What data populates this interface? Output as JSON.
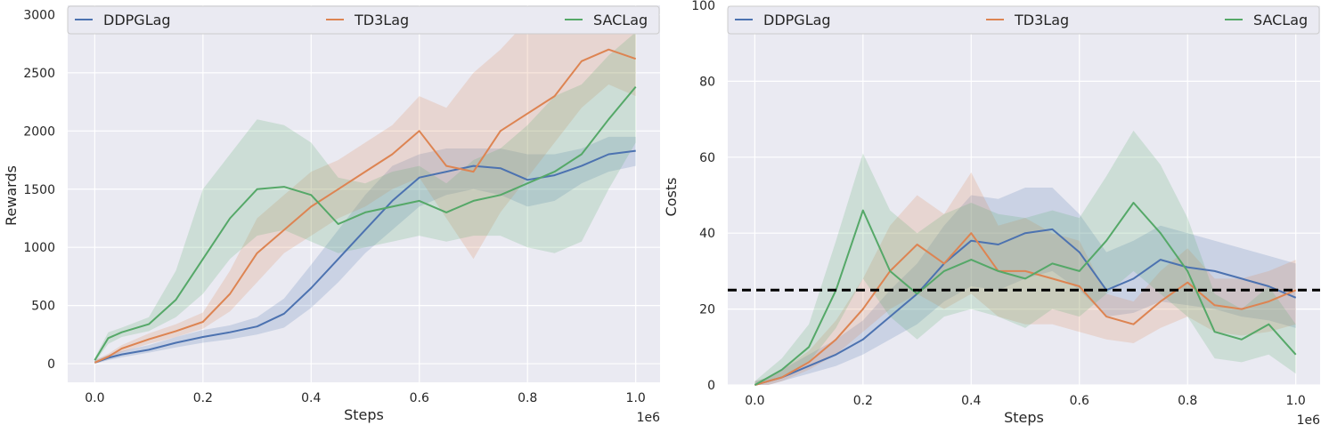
{
  "chart_data": [
    {
      "type": "line",
      "xlabel": "Steps",
      "ylabel": "Rewards",
      "x_offset_text": "1e6",
      "xlim": [
        -0.05,
        1.045
      ],
      "ylim": [
        -160,
        3080
      ],
      "xticks": [
        0.0,
        0.2,
        0.4,
        0.6,
        0.8,
        1.0
      ],
      "xtick_labels": [
        "0.0",
        "0.2",
        "0.4",
        "0.6",
        "0.8",
        "1.0"
      ],
      "yticks": [
        0,
        500,
        1000,
        1500,
        2000,
        2500,
        3000
      ],
      "ytick_labels": [
        "0",
        "500",
        "1000",
        "1500",
        "2000",
        "2500",
        "3000"
      ],
      "grid": true,
      "legend_position": "top",
      "x": [
        0.0,
        0.025,
        0.05,
        0.1,
        0.15,
        0.2,
        0.25,
        0.3,
        0.35,
        0.4,
        0.45,
        0.5,
        0.55,
        0.6,
        0.65,
        0.7,
        0.75,
        0.8,
        0.85,
        0.9,
        0.95,
        1.0
      ],
      "series": [
        {
          "name": "DDPGLag",
          "color": "#4c72b0",
          "values": [
            10,
            50,
            80,
            120,
            180,
            230,
            270,
            320,
            430,
            650,
            900,
            1150,
            1400,
            1600,
            1650,
            1700,
            1680,
            1580,
            1620,
            1700,
            1800,
            1830
          ],
          "lower": [
            0,
            30,
            55,
            95,
            140,
            180,
            210,
            250,
            310,
            480,
            700,
            950,
            1150,
            1350,
            1450,
            1500,
            1450,
            1350,
            1400,
            1550,
            1650,
            1700
          ],
          "upper": [
            30,
            75,
            110,
            160,
            230,
            290,
            330,
            400,
            560,
            850,
            1150,
            1450,
            1700,
            1800,
            1850,
            1850,
            1850,
            1800,
            1800,
            1850,
            1950,
            1950
          ]
        },
        {
          "name": "TD3Lag",
          "color": "#dd8452",
          "values": [
            10,
            60,
            130,
            210,
            280,
            360,
            600,
            950,
            1150,
            1350,
            1500,
            1650,
            1800,
            2000,
            1700,
            1650,
            2000,
            2150,
            2300,
            2600,
            2700,
            2620
          ],
          "lower": [
            0,
            40,
            100,
            170,
            230,
            300,
            450,
            700,
            950,
            1100,
            1250,
            1350,
            1500,
            1600,
            1250,
            900,
            1300,
            1600,
            1900,
            2200,
            2400,
            2300
          ],
          "upper": [
            30,
            85,
            160,
            260,
            340,
            440,
            800,
            1250,
            1450,
            1650,
            1750,
            1900,
            2050,
            2300,
            2200,
            2500,
            2700,
            2950,
            3050,
            3050,
            3050,
            3050
          ]
        },
        {
          "name": "SACLag",
          "color": "#55a868",
          "values": [
            30,
            220,
            270,
            340,
            550,
            900,
            1250,
            1500,
            1520,
            1450,
            1200,
            1300,
            1350,
            1400,
            1300,
            1400,
            1450,
            1550,
            1650,
            1800,
            2100,
            2380
          ],
          "lower": [
            10,
            170,
            230,
            280,
            400,
            600,
            900,
            1100,
            1150,
            1050,
            950,
            1000,
            1050,
            1100,
            1050,
            1100,
            1100,
            1000,
            950,
            1050,
            1500,
            1900
          ],
          "upper": [
            50,
            270,
            310,
            400,
            800,
            1500,
            1800,
            2100,
            2050,
            1900,
            1600,
            1550,
            1650,
            1700,
            1550,
            1750,
            1850,
            2050,
            2300,
            2400,
            2650,
            2850
          ]
        }
      ]
    },
    {
      "type": "line",
      "xlabel": "Steps",
      "ylabel": "Costs",
      "x_offset_text": "1e6",
      "xlim": [
        -0.05,
        1.045
      ],
      "ylim": [
        0,
        100
      ],
      "xticks": [
        0.0,
        0.2,
        0.4,
        0.6,
        0.8,
        1.0
      ],
      "xtick_labels": [
        "0.0",
        "0.2",
        "0.4",
        "0.6",
        "0.8",
        "1.0"
      ],
      "yticks": [
        0,
        20,
        40,
        60,
        80,
        100
      ],
      "ytick_labels": [
        "0",
        "20",
        "40",
        "60",
        "80",
        "100"
      ],
      "grid": true,
      "legend_position": "top",
      "threshold": {
        "y": 25,
        "color": "#000000",
        "style": "dashed"
      },
      "x": [
        0.0,
        0.025,
        0.05,
        0.1,
        0.15,
        0.2,
        0.25,
        0.3,
        0.35,
        0.4,
        0.45,
        0.5,
        0.55,
        0.6,
        0.65,
        0.7,
        0.75,
        0.8,
        0.85,
        0.9,
        0.95,
        1.0
      ],
      "series": [
        {
          "name": "DDPGLag",
          "color": "#4c72b0",
          "values": [
            0,
            1,
            2,
            5,
            8,
            12,
            18,
            24,
            32,
            38,
            37,
            40,
            41,
            35,
            25,
            28,
            33,
            31,
            30,
            28,
            26,
            23
          ],
          "lower": [
            0,
            0,
            1,
            3,
            5,
            8,
            12,
            16,
            22,
            26,
            25,
            28,
            30,
            25,
            18,
            19,
            22,
            21,
            20,
            18,
            17,
            15
          ],
          "upper": [
            1,
            2,
            4,
            8,
            12,
            17,
            25,
            32,
            42,
            50,
            49,
            52,
            52,
            45,
            35,
            38,
            42,
            40,
            38,
            36,
            34,
            32
          ]
        },
        {
          "name": "TD3Lag",
          "color": "#dd8452",
          "values": [
            0,
            1,
            2,
            6,
            12,
            20,
            30,
            37,
            32,
            40,
            30,
            30,
            28,
            26,
            18,
            16,
            22,
            27,
            21,
            20,
            22,
            25
          ],
          "lower": [
            0,
            0,
            1,
            4,
            8,
            14,
            20,
            24,
            20,
            24,
            18,
            16,
            16,
            14,
            12,
            11,
            15,
            18,
            14,
            13,
            14,
            16
          ],
          "upper": [
            1,
            2,
            4,
            9,
            17,
            28,
            42,
            50,
            45,
            56,
            42,
            44,
            40,
            38,
            24,
            22,
            30,
            36,
            28,
            28,
            30,
            33
          ]
        },
        {
          "name": "SACLag",
          "color": "#55a868",
          "values": [
            0,
            2,
            4,
            10,
            25,
            46,
            30,
            24,
            30,
            33,
            30,
            28,
            32,
            30,
            38,
            48,
            40,
            30,
            14,
            12,
            16,
            8
          ],
          "lower": [
            0,
            1,
            2,
            6,
            15,
            28,
            18,
            12,
            18,
            20,
            18,
            15,
            20,
            18,
            24,
            30,
            24,
            18,
            7,
            6,
            8,
            3
          ],
          "upper": [
            1,
            4,
            7,
            16,
            38,
            61,
            46,
            40,
            45,
            48,
            45,
            44,
            46,
            44,
            55,
            67,
            58,
            44,
            24,
            20,
            26,
            16
          ]
        }
      ]
    }
  ]
}
